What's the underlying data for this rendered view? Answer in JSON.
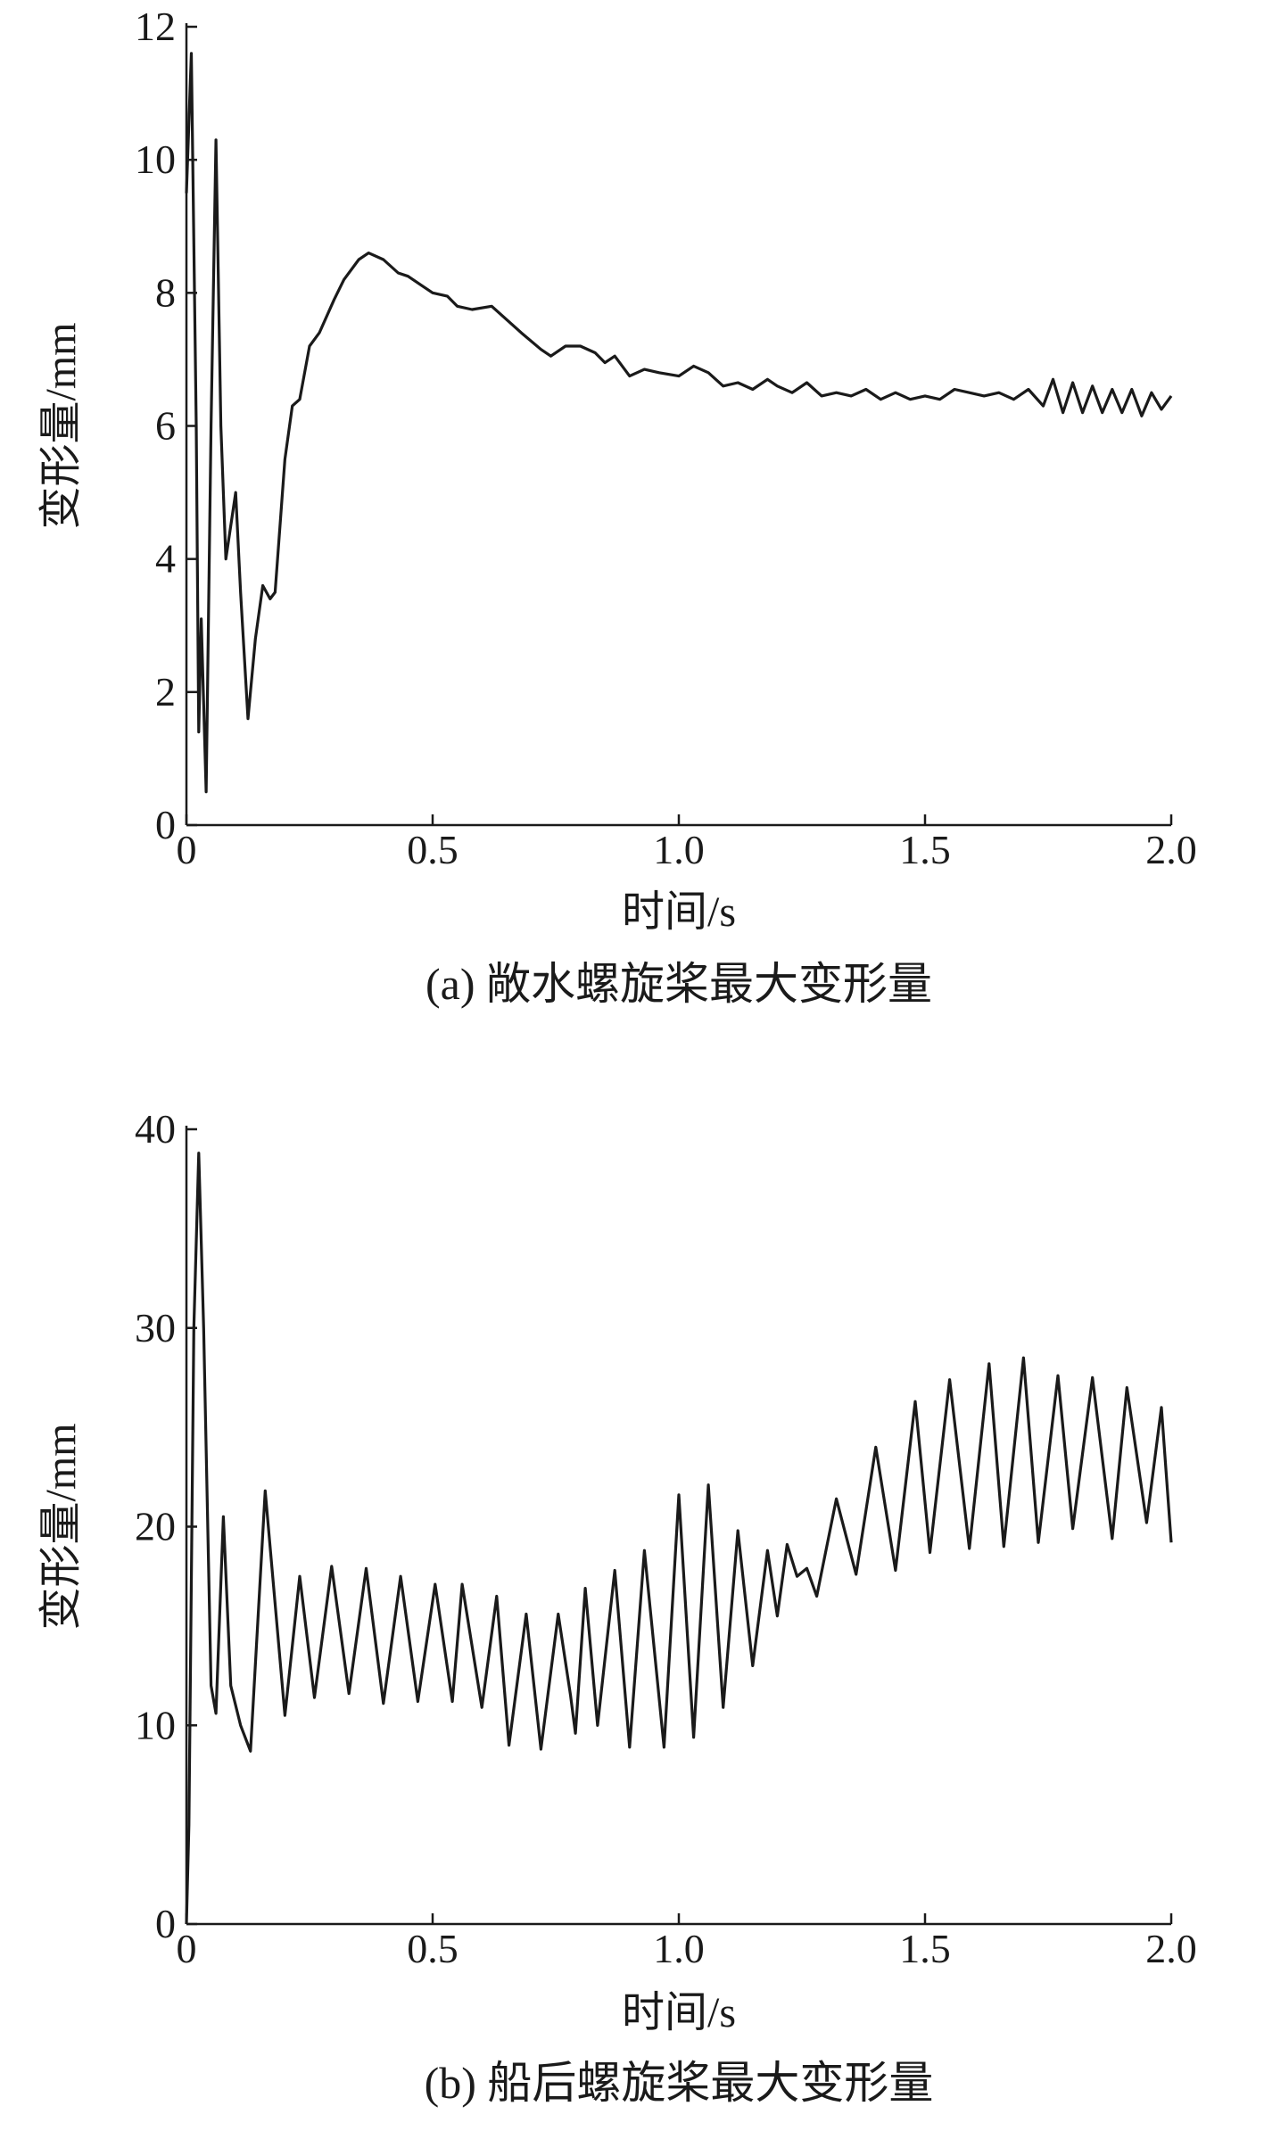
{
  "chart_data": [
    {
      "type": "line",
      "caption": "(a) 敞水螺旋桨最大变形量",
      "x_label": "时间/s",
      "y_label": "变形量/mm",
      "xlim": [
        0,
        2.0
      ],
      "ylim": [
        0,
        12
      ],
      "xticks": [
        0,
        0.5,
        {
          "value": 1.0,
          "label": "1.0"
        },
        1.5,
        {
          "value": 2.0,
          "label": "2.0"
        }
      ],
      "yticks": [
        0,
        2,
        4,
        6,
        8,
        10,
        12
      ],
      "color": "#1a1a1a",
      "x": [
        0,
        0.01,
        0.02,
        0.025,
        0.03,
        0.04,
        0.05,
        0.06,
        0.07,
        0.08,
        0.1,
        0.11,
        0.125,
        0.14,
        0.155,
        0.17,
        0.18,
        0.2,
        0.215,
        0.23,
        0.25,
        0.27,
        0.3,
        0.32,
        0.35,
        0.37,
        0.4,
        0.43,
        0.45,
        0.48,
        0.5,
        0.53,
        0.55,
        0.58,
        0.62,
        0.65,
        0.68,
        0.72,
        0.74,
        0.77,
        0.8,
        0.83,
        0.85,
        0.87,
        0.9,
        0.93,
        0.96,
        1.0,
        1.03,
        1.06,
        1.09,
        1.12,
        1.15,
        1.18,
        1.2,
        1.23,
        1.26,
        1.29,
        1.32,
        1.35,
        1.38,
        1.41,
        1.44,
        1.47,
        1.5,
        1.53,
        1.56,
        1.59,
        1.62,
        1.65,
        1.68,
        1.71,
        1.74,
        1.76,
        1.78,
        1.8,
        1.82,
        1.84,
        1.86,
        1.88,
        1.9,
        1.92,
        1.94,
        1.96,
        1.98,
        2.0
      ],
      "values": [
        9.5,
        11.6,
        6,
        1.4,
        3.1,
        0.5,
        6,
        10.3,
        6,
        4.0,
        5.0,
        3.5,
        1.6,
        2.8,
        3.6,
        3.4,
        3.5,
        5.5,
        6.3,
        6.4,
        7.2,
        7.4,
        7.9,
        8.2,
        8.5,
        8.6,
        8.5,
        8.3,
        8.25,
        8.1,
        8.0,
        7.95,
        7.8,
        7.75,
        7.8,
        7.6,
        7.4,
        7.15,
        7.05,
        7.2,
        7.2,
        7.1,
        6.95,
        7.05,
        6.75,
        6.85,
        6.8,
        6.75,
        6.9,
        6.8,
        6.6,
        6.65,
        6.55,
        6.7,
        6.6,
        6.5,
        6.65,
        6.45,
        6.5,
        6.45,
        6.55,
        6.4,
        6.5,
        6.4,
        6.45,
        6.4,
        6.55,
        6.5,
        6.45,
        6.5,
        6.4,
        6.55,
        6.3,
        6.7,
        6.2,
        6.65,
        6.2,
        6.6,
        6.2,
        6.55,
        6.2,
        6.55,
        6.15,
        6.5,
        6.25,
        6.45
      ]
    },
    {
      "type": "line",
      "caption": "(b) 船后螺旋桨最大变形量",
      "x_label": "时间/s",
      "y_label": "变形量/mm",
      "xlim": [
        0,
        2.0
      ],
      "ylim": [
        0,
        40
      ],
      "xticks": [
        0,
        0.5,
        {
          "value": 1.0,
          "label": "1.0"
        },
        1.5,
        {
          "value": 2.0,
          "label": "2.0"
        }
      ],
      "yticks": [
        0,
        10,
        20,
        30,
        40
      ],
      "color": "#1a1a1a",
      "x": [
        0,
        0.005,
        0.015,
        0.025,
        0.035,
        0.05,
        0.06,
        0.075,
        0.09,
        0.11,
        0.13,
        0.16,
        0.2,
        0.23,
        0.26,
        0.295,
        0.33,
        0.365,
        0.4,
        0.435,
        0.47,
        0.505,
        0.54,
        0.56,
        0.6,
        0.63,
        0.655,
        0.69,
        0.72,
        0.755,
        0.78,
        0.79,
        0.81,
        0.835,
        0.87,
        0.9,
        0.93,
        0.97,
        1.0,
        1.03,
        1.06,
        1.09,
        1.12,
        1.15,
        1.18,
        1.2,
        1.22,
        1.24,
        1.26,
        1.28,
        1.32,
        1.36,
        1.4,
        1.44,
        1.48,
        1.51,
        1.55,
        1.59,
        1.63,
        1.66,
        1.7,
        1.73,
        1.77,
        1.8,
        1.84,
        1.88,
        1.91,
        1.95,
        1.98,
        2.0
      ],
      "values": [
        0,
        5,
        30,
        38.8,
        30,
        12,
        10.6,
        20.5,
        12,
        10,
        8.7,
        21.8,
        10.5,
        17.5,
        11.4,
        18,
        11.6,
        17.9,
        11.1,
        17.5,
        11.2,
        17.1,
        11.2,
        17.1,
        10.9,
        16.5,
        9.0,
        15.6,
        8.8,
        15.6,
        11.5,
        9.6,
        16.9,
        10,
        17.8,
        8.9,
        18.8,
        8.9,
        21.6,
        9.4,
        22.1,
        10.9,
        19.8,
        13,
        18.8,
        15.5,
        19.1,
        17.5,
        17.9,
        16.5,
        21.4,
        17.6,
        24,
        17.8,
        26.3,
        18.7,
        27.4,
        18.9,
        28.2,
        19,
        28.5,
        19.2,
        27.6,
        19.9,
        27.5,
        19.4,
        27,
        20.2,
        26,
        19.2
      ]
    }
  ]
}
